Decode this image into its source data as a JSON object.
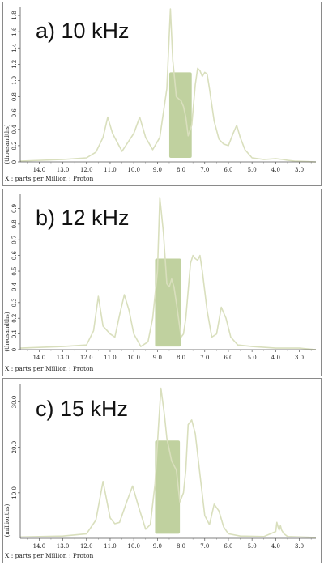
{
  "chart_data": [
    {
      "type": "line",
      "title": "a) 10 kHz",
      "xlabel": "X : parts per Million : Proton",
      "ylabel": "(thousandths)",
      "xlim": [
        14.8,
        2.3
      ],
      "ylim": [
        0,
        1.9
      ],
      "x_ticks": [
        "14.0",
        "13.0",
        "12.0",
        "11.0",
        "10.0",
        "9.0",
        "8.0",
        "7.0",
        "6.0",
        "5.0",
        "4.0",
        "3.0"
      ],
      "y_ticks": [
        "0",
        "0.2",
        "0.4",
        "0.6",
        "0.8",
        "1.0",
        "1.2",
        "1.4",
        "1.6",
        "1.8"
      ],
      "line_color": "#d9dfbd",
      "highlight": {
        "x_range": [
          8.5,
          7.55
        ],
        "y_range": [
          0.05,
          1.1
        ],
        "color": "#b5c98e"
      },
      "series": [
        {
          "x": [
            14.8,
            13.0,
            12.0,
            11.6,
            11.3,
            11.1,
            10.9,
            10.5,
            10.0,
            9.75,
            9.5,
            9.2,
            8.9,
            8.6,
            8.45,
            8.35,
            8.2,
            8.0,
            7.9,
            7.8,
            7.7,
            7.55,
            7.4,
            7.3,
            7.2,
            7.1,
            7.0,
            6.9,
            6.8,
            6.6,
            6.4,
            6.2,
            6.0,
            5.8,
            5.65,
            5.5,
            5.3,
            5.0,
            4.5,
            4.0,
            3.7,
            3.5,
            3.2,
            2.3
          ],
          "y": [
            0.01,
            0.03,
            0.05,
            0.12,
            0.3,
            0.55,
            0.35,
            0.13,
            0.35,
            0.55,
            0.3,
            0.15,
            0.3,
            0.9,
            1.88,
            1.25,
            0.8,
            0.75,
            0.68,
            0.55,
            0.32,
            0.45,
            0.95,
            1.15,
            1.12,
            1.05,
            1.1,
            1.08,
            0.9,
            0.5,
            0.28,
            0.22,
            0.2,
            0.35,
            0.45,
            0.3,
            0.15,
            0.05,
            0.03,
            0.04,
            0.03,
            0.02,
            0.01,
            0.0
          ]
        }
      ]
    },
    {
      "type": "line",
      "title": "b) 12 kHz",
      "xlabel": "X : parts per Million : Proton",
      "ylabel": "(thousandths)",
      "xlim": [
        14.8,
        2.3
      ],
      "ylim": [
        0,
        0.99
      ],
      "x_ticks": [
        "14.0",
        "13.0",
        "12.0",
        "11.0",
        "10.0",
        "9.0",
        "8.0",
        "7.0",
        "6.0",
        "5.0",
        "4.0",
        "3.0"
      ],
      "y_ticks": [
        "0",
        "0.1",
        "0.2",
        "0.3",
        "0.4",
        "0.5",
        "0.6",
        "0.7",
        "0.8",
        "0.9"
      ],
      "line_color": "#d9dfbd",
      "highlight": {
        "x_range": [
          9.1,
          8.0
        ],
        "y_range": [
          0.02,
          0.58
        ],
        "color": "#b5c98e"
      },
      "series": [
        {
          "x": [
            14.8,
            13.0,
            12.0,
            11.7,
            11.5,
            11.3,
            11.0,
            10.8,
            10.7,
            10.6,
            10.4,
            10.2,
            10.0,
            9.7,
            9.4,
            9.2,
            9.0,
            8.9,
            8.75,
            8.6,
            8.5,
            8.4,
            8.3,
            8.2,
            8.0,
            7.9,
            7.8,
            7.6,
            7.5,
            7.4,
            7.3,
            7.2,
            7.1,
            6.9,
            6.7,
            6.5,
            6.3,
            6.1,
            5.9,
            5.6,
            5.0,
            4.0,
            3.0,
            2.3
          ],
          "y": [
            0.01,
            0.02,
            0.03,
            0.12,
            0.34,
            0.15,
            0.1,
            0.08,
            0.15,
            0.22,
            0.35,
            0.25,
            0.1,
            0.02,
            0.05,
            0.2,
            0.5,
            0.97,
            0.75,
            0.42,
            0.4,
            0.45,
            0.4,
            0.3,
            0.08,
            0.1,
            0.2,
            0.55,
            0.6,
            0.58,
            0.57,
            0.6,
            0.5,
            0.25,
            0.08,
            0.1,
            0.27,
            0.2,
            0.08,
            0.03,
            0.02,
            0.01,
            0.01,
            0.0
          ]
        }
      ]
    },
    {
      "type": "line",
      "title": "c) 15 kHz",
      "xlabel": "X : parts per Million : Proton",
      "ylabel": "(millionths)",
      "xlim": [
        14.8,
        2.3
      ],
      "ylim": [
        0,
        34
      ],
      "x_ticks": [
        "14.0",
        "13.0",
        "12.0",
        "11.0",
        "10.0",
        "9.0",
        "8.0",
        "7.0",
        "6.0",
        "5.0",
        "4.0",
        "3.0"
      ],
      "y_ticks": [
        "10.0",
        "20.0",
        "30.0"
      ],
      "line_color": "#d9dfbd",
      "highlight": {
        "x_range": [
          9.1,
          8.05
        ],
        "y_range": [
          1.0,
          21.5
        ],
        "color": "#b5c98e"
      },
      "series": [
        {
          "x": [
            14.8,
            13.0,
            12.0,
            11.6,
            11.3,
            11.0,
            10.8,
            10.6,
            10.3,
            10.05,
            9.8,
            9.5,
            9.3,
            9.1,
            8.95,
            8.85,
            8.7,
            8.6,
            8.4,
            8.2,
            8.05,
            7.9,
            7.8,
            7.7,
            7.55,
            7.4,
            7.2,
            7.0,
            6.8,
            6.6,
            6.4,
            6.2,
            6.0,
            5.5,
            4.5,
            4.0,
            3.95,
            3.9,
            3.85,
            3.8,
            3.75,
            3.65,
            3.5,
            2.3
          ],
          "y": [
            0.3,
            0.5,
            1.0,
            4.0,
            12.5,
            4.5,
            3.2,
            3.5,
            8.0,
            11.5,
            7.0,
            2.0,
            3.0,
            12.0,
            25.0,
            33.0,
            27.0,
            22.0,
            17.0,
            15.0,
            8.0,
            10.0,
            15.0,
            25.0,
            26.0,
            23.0,
            14.0,
            5.0,
            3.0,
            7.5,
            6.0,
            2.5,
            1.0,
            0.5,
            0.4,
            1.5,
            3.5,
            2.5,
            1.8,
            2.8,
            1.8,
            1.0,
            0.4,
            0.2
          ]
        }
      ]
    }
  ]
}
